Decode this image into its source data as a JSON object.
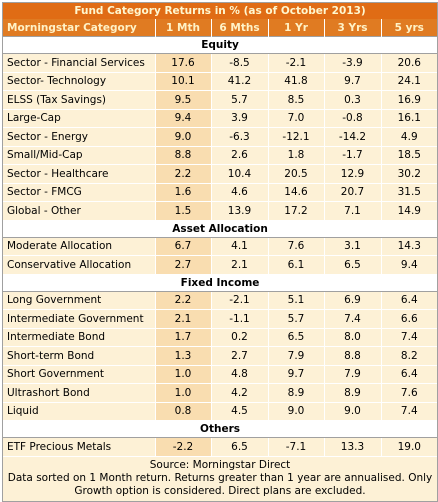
{
  "title": "Fund Category Returns in % (as of October 2013)",
  "headers": [
    "Morningstar Category",
    "1 Mth",
    "6 Mths",
    "1 Yr",
    "3 Yrs",
    "5 yrs"
  ],
  "sections": [
    {
      "name": "Equity",
      "rows": [
        [
          "Sector - Financial Services",
          "17.6",
          "-8.5",
          "-2.1",
          "-3.9",
          "20.6"
        ],
        [
          "Sector- Technology",
          "10.1",
          "41.2",
          "41.8",
          "9.7",
          "24.1"
        ],
        [
          "ELSS (Tax Savings)",
          "9.5",
          "5.7",
          "8.5",
          "0.3",
          "16.9"
        ],
        [
          "Large-Cap",
          "9.4",
          "3.9",
          "7.0",
          "-0.8",
          "16.1"
        ],
        [
          "Sector - Energy",
          "9.0",
          "-6.3",
          "-12.1",
          "-14.2",
          "4.9"
        ],
        [
          "Small/Mid-Cap",
          "8.8",
          "2.6",
          "1.8",
          "-1.7",
          "18.5"
        ],
        [
          "Sector - Healthcare",
          "2.2",
          "10.4",
          "20.5",
          "12.9",
          "30.2"
        ],
        [
          "Sector - FMCG",
          "1.6",
          "4.6",
          "14.6",
          "20.7",
          "31.5"
        ],
        [
          "Global - Other",
          "1.5",
          "13.9",
          "17.2",
          "7.1",
          "14.9"
        ]
      ]
    },
    {
      "name": "Asset Allocation",
      "rows": [
        [
          "Moderate Allocation",
          "6.7",
          "4.1",
          "7.6",
          "3.1",
          "14.3"
        ],
        [
          "Conservative Allocation",
          "2.7",
          "2.1",
          "6.1",
          "6.5",
          "9.4"
        ]
      ]
    },
    {
      "name": "Fixed Income",
      "rows": [
        [
          "Long Government",
          "2.2",
          "-2.1",
          "5.1",
          "6.9",
          "6.4"
        ],
        [
          "Intermediate Government",
          "2.1",
          "-1.1",
          "5.7",
          "7.4",
          "6.6"
        ],
        [
          "Intermediate Bond",
          "1.7",
          "0.2",
          "6.5",
          "8.0",
          "7.4"
        ],
        [
          "Short-term Bond",
          "1.3",
          "2.7",
          "7.9",
          "8.8",
          "8.2"
        ],
        [
          "Short Government",
          "1.0",
          "4.8",
          "9.7",
          "7.9",
          "6.4"
        ],
        [
          "Ultrashort Bond",
          "1.0",
          "4.2",
          "8.9",
          "8.9",
          "7.6"
        ],
        [
          "Liquid",
          "0.8",
          "4.5",
          "9.0",
          "9.0",
          "7.4"
        ]
      ]
    },
    {
      "name": "Others",
      "rows": [
        [
          "ETF Precious Metals",
          "-2.2",
          "6.5",
          "-7.1",
          "13.3",
          "19.0"
        ]
      ]
    }
  ],
  "footer": {
    "source": "Source: Morningstar Direct",
    "note": "Data sorted on 1 Month return. Returns greater than 1 year are annualised. Only Growth option is considered. Direct plans are excluded."
  }
}
